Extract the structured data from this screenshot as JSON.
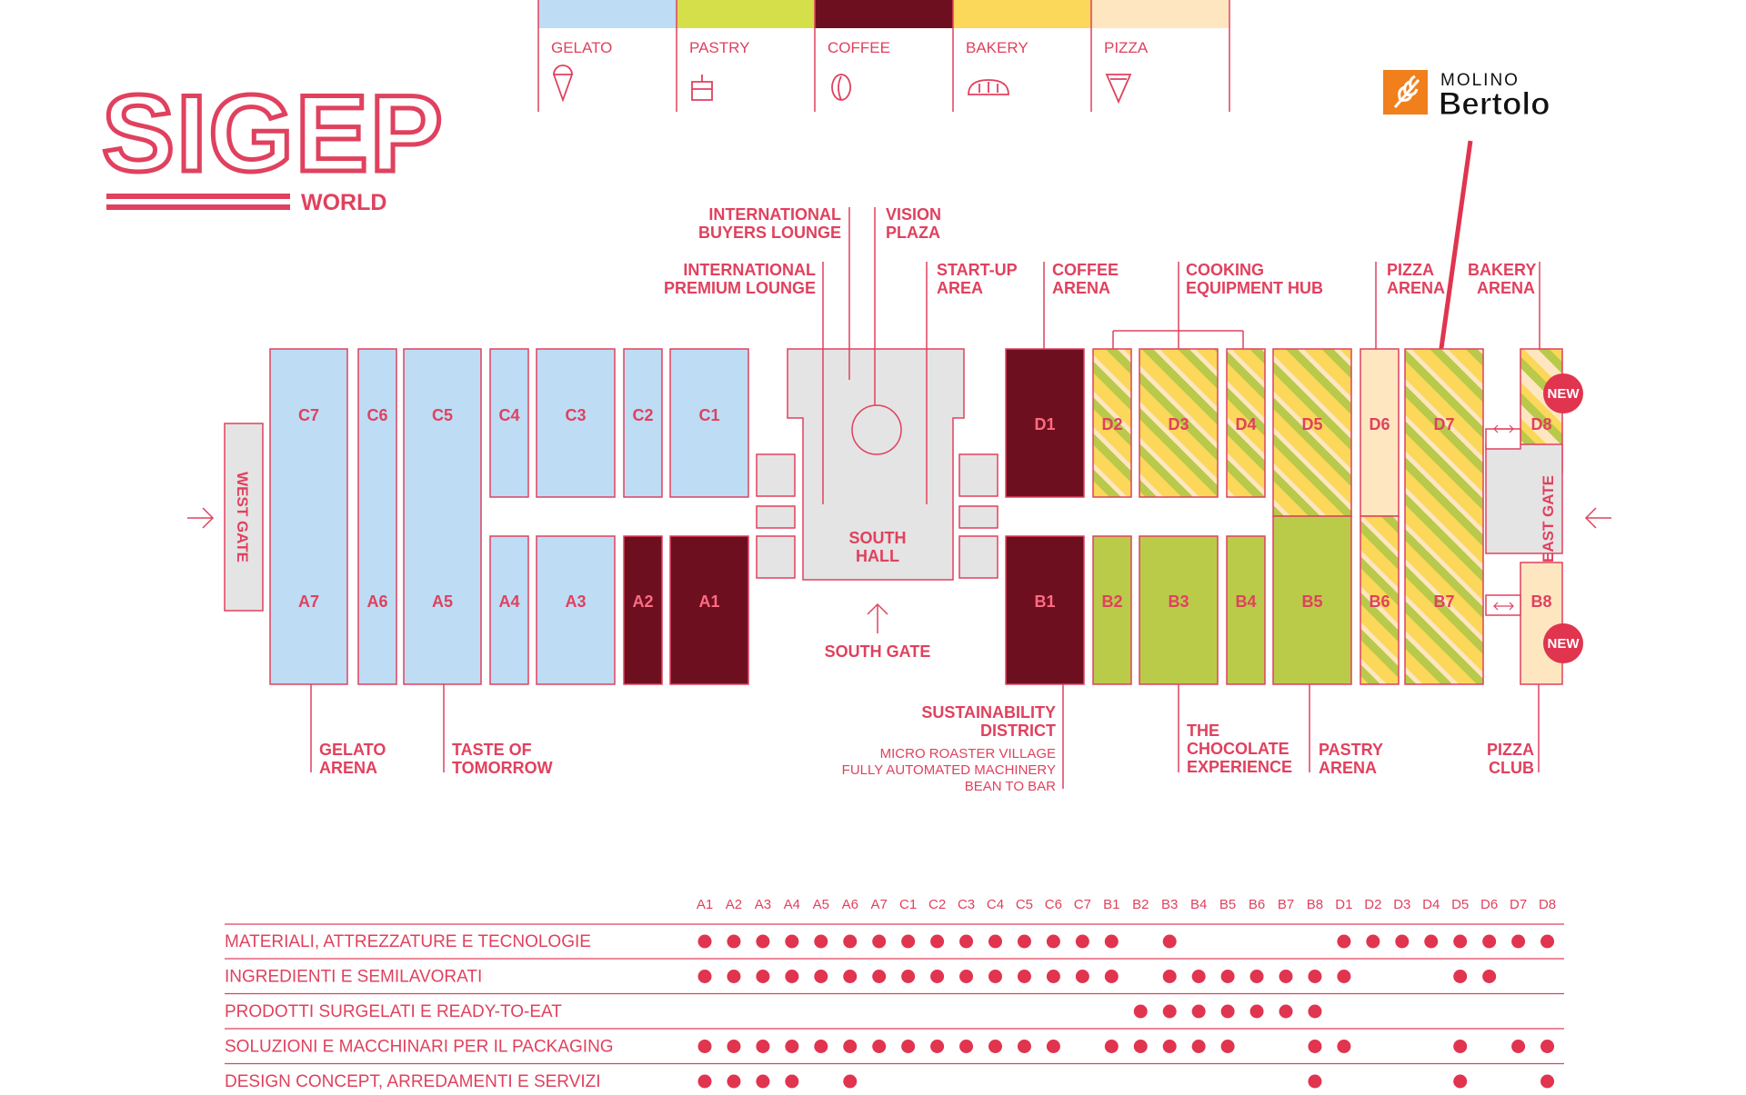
{
  "brand": {
    "logo_text": "SIGEP",
    "logo_sub": "WORLD",
    "sponsor_small": "MOLINO",
    "sponsor_big": "Bertolo"
  },
  "colors": {
    "red": "#e0415e",
    "gelato": "#bfdcf5",
    "pastry": "#bacb4a",
    "coffee": "#6e0f1f",
    "bakery": "#f7d84a",
    "pizza": "#fde6c0",
    "hall_grey": "#e4e4e4"
  },
  "legend": [
    {
      "label": "GELATO",
      "color": "#bfdcf5",
      "icon": "ice-cream-icon"
    },
    {
      "label": "PASTRY",
      "color": "#d4df4a",
      "icon": "cake-icon"
    },
    {
      "label": "COFFEE",
      "color": "#6e0f1f",
      "icon": "coffee-bean-icon"
    },
    {
      "label": "BAKERY",
      "color": "#fbd75a",
      "icon": "bread-icon"
    },
    {
      "label": "PIZZA",
      "color": "#fde6c0",
      "icon": "pizza-slice-icon"
    }
  ],
  "halls": {
    "C7": "C7",
    "C6": "C6",
    "C5": "C5",
    "C4": "C4",
    "C3": "C3",
    "C2": "C2",
    "C1": "C1",
    "A7": "A7",
    "A6": "A6",
    "A5": "A5",
    "A4": "A4",
    "A3": "A3",
    "A2": "A2",
    "A1": "A1",
    "D1": "D1",
    "D2": "D2",
    "D3": "D3",
    "D4": "D4",
    "D5": "D5",
    "D6": "D6",
    "D7": "D7",
    "D8": "D8",
    "B1": "B1",
    "B2": "B2",
    "B3": "B3",
    "B4": "B4",
    "B5": "B5",
    "B6": "B6",
    "B7": "B7",
    "B8": "B8"
  },
  "gates": {
    "west": "WEST GATE",
    "east": "EAST GATE",
    "south": "SOUTH GATE",
    "south_hall_1": "SOUTH",
    "south_hall_2": "HALL"
  },
  "badges": {
    "new": "NEW"
  },
  "callouts": {
    "intl_buyers_1": "INTERNATIONAL",
    "intl_buyers_2": "BUYERS LOUNGE",
    "vision_1": "VISION",
    "vision_2": "PLAZA",
    "intl_premium_1": "INTERNATIONAL",
    "intl_premium_2": "PREMIUM LOUNGE",
    "startup_1": "START-UP",
    "startup_2": "AREA",
    "coffee_arena_1": "COFFEE",
    "coffee_arena_2": "ARENA",
    "cooking_1": "COOKING",
    "cooking_2": "EQUIPMENT HUB",
    "pizza_arena_1": "PIZZA",
    "pizza_arena_2": "ARENA",
    "bakery_arena_1": "BAKERY",
    "bakery_arena_2": "ARENA",
    "gelato_arena_1": "GELATO",
    "gelato_arena_2": "ARENA",
    "taste_1": "TASTE OF",
    "taste_2": "TOMORROW",
    "sustain_1": "SUSTAINABILITY",
    "sustain_2": "DISTRICT",
    "micro": "MICRO ROASTER VILLAGE",
    "automated": "FULLY AUTOMATED MACHINERY",
    "bean": "BEAN TO BAR",
    "choco_1": "THE",
    "choco_2": "CHOCOLATE",
    "choco_3": "EXPERIENCE",
    "pastry_arena_1": "PASTRY",
    "pastry_arena_2": "ARENA",
    "pizza_club_1": "PIZZA",
    "pizza_club_2": "CLUB"
  },
  "matrix": {
    "columns": [
      "A1",
      "A2",
      "A3",
      "A4",
      "A5",
      "A6",
      "A7",
      "C1",
      "C2",
      "C3",
      "C4",
      "C5",
      "C6",
      "C7",
      "B1",
      "B2",
      "B3",
      "B4",
      "B5",
      "B6",
      "B7",
      "B8",
      "D1",
      "D2",
      "D3",
      "D4",
      "D5",
      "D6",
      "D7",
      "D8"
    ],
    "rows": [
      {
        "label": "MATERIALI, ATTREZZATURE E TECNOLOGIE",
        "halls": [
          "A1",
          "A2",
          "A3",
          "A4",
          "A5",
          "A6",
          "A7",
          "C1",
          "C2",
          "C3",
          "C4",
          "C5",
          "C6",
          "C7",
          "B1",
          "B3",
          "D1",
          "D2",
          "D3",
          "D4",
          "D5",
          "D6",
          "D7",
          "D8"
        ]
      },
      {
        "label": "INGREDIENTI E SEMILAVORATI",
        "halls": [
          "A1",
          "A2",
          "A3",
          "A4",
          "A5",
          "A6",
          "A7",
          "C1",
          "C2",
          "C3",
          "C4",
          "C5",
          "C6",
          "C7",
          "B1",
          "B3",
          "B4",
          "B5",
          "B6",
          "B7",
          "B8",
          "D1",
          "D5",
          "D6"
        ]
      },
      {
        "label": "PRODOTTI SURGELATI E READY-TO-EAT",
        "halls": [
          "B2",
          "B3",
          "B4",
          "B5",
          "B6",
          "B7",
          "B8"
        ]
      },
      {
        "label": "SOLUZIONI E MACCHINARI PER IL PACKAGING",
        "halls": [
          "A1",
          "A2",
          "A3",
          "A4",
          "A5",
          "A6",
          "A7",
          "C1",
          "C2",
          "C3",
          "C4",
          "C5",
          "C6",
          "B1",
          "B2",
          "B3",
          "B4",
          "B5",
          "B8",
          "D1",
          "D5",
          "D7",
          "D8"
        ]
      },
      {
        "label": "DESIGN CONCEPT, ARREDAMENTI E SERVIZI",
        "halls": [
          "A1",
          "A2",
          "A3",
          "A4",
          "A6",
          "B8",
          "D5",
          "D8"
        ]
      }
    ]
  }
}
